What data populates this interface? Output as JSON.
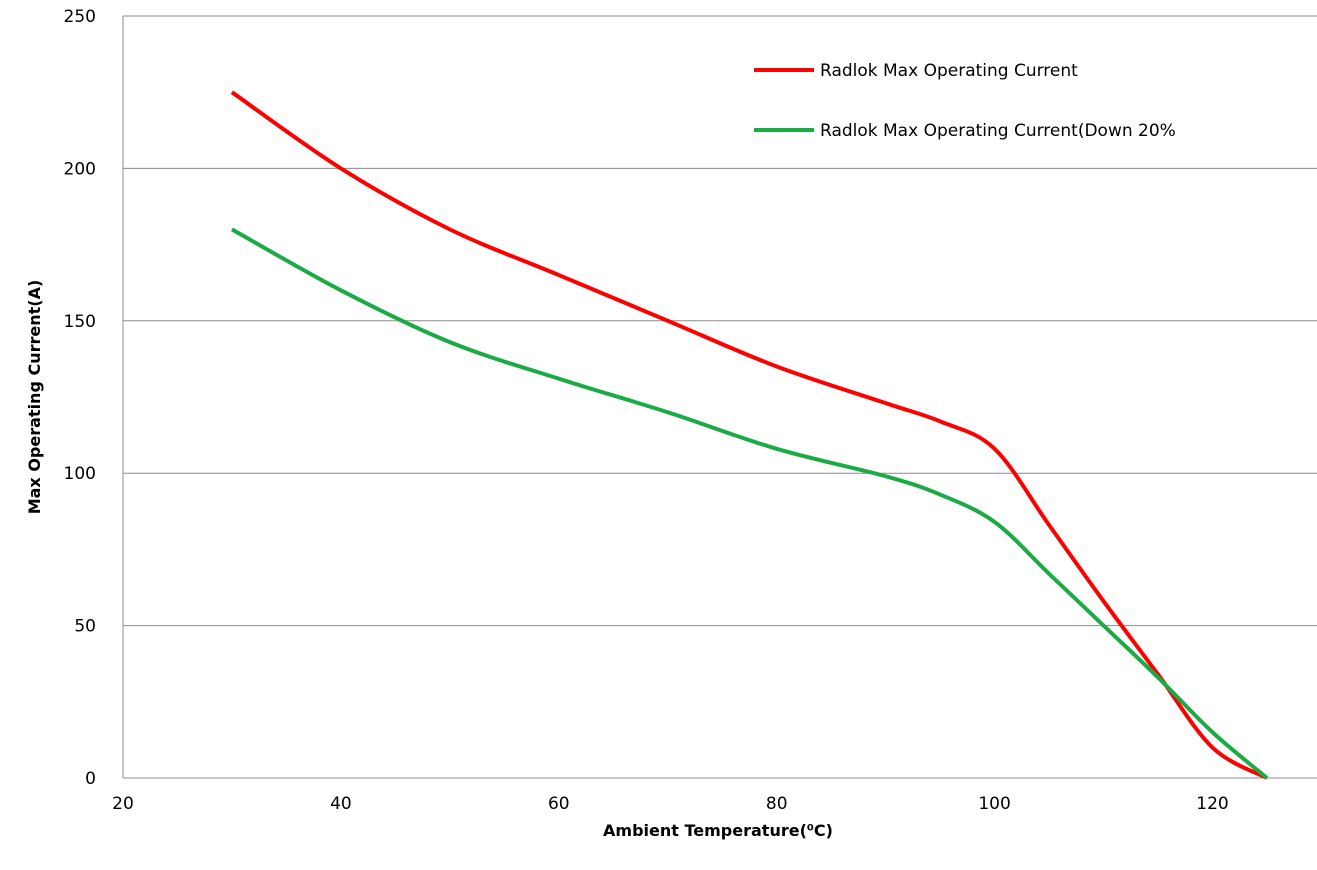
{
  "chart_data": {
    "type": "line",
    "xlabel": "Ambient Temperature(⁰C)",
    "ylabel": "Max Operating Current(A)",
    "xlim": [
      20,
      125
    ],
    "ylim": [
      0,
      250
    ],
    "x_ticks": [
      "20",
      "40",
      "60",
      "80",
      "100",
      "120"
    ],
    "y_ticks": [
      "0",
      "50",
      "100",
      "150",
      "200",
      "250"
    ],
    "grid": "horizontal",
    "legend_position": "top-right",
    "series": [
      {
        "name": "Radlok Max Operating Current",
        "color": "#ff0000",
        "x": [
          30,
          40,
          50,
          60,
          70,
          80,
          90,
          95,
          100,
          105,
          110,
          115,
          120,
          125
        ],
        "y": [
          225,
          200,
          180,
          165,
          150,
          135,
          123,
          117,
          108,
          83,
          58,
          34,
          10,
          0
        ]
      },
      {
        "name": "Radlok Max Operating Current(Down 20%",
        "color": "#1aab44",
        "x": [
          30,
          40,
          50,
          60,
          70,
          80,
          90,
          95,
          100,
          105,
          110,
          115,
          120,
          125
        ],
        "y": [
          180,
          160,
          143,
          131,
          120,
          108,
          99,
          93,
          84,
          67,
          50,
          33,
          15,
          0
        ]
      }
    ]
  }
}
